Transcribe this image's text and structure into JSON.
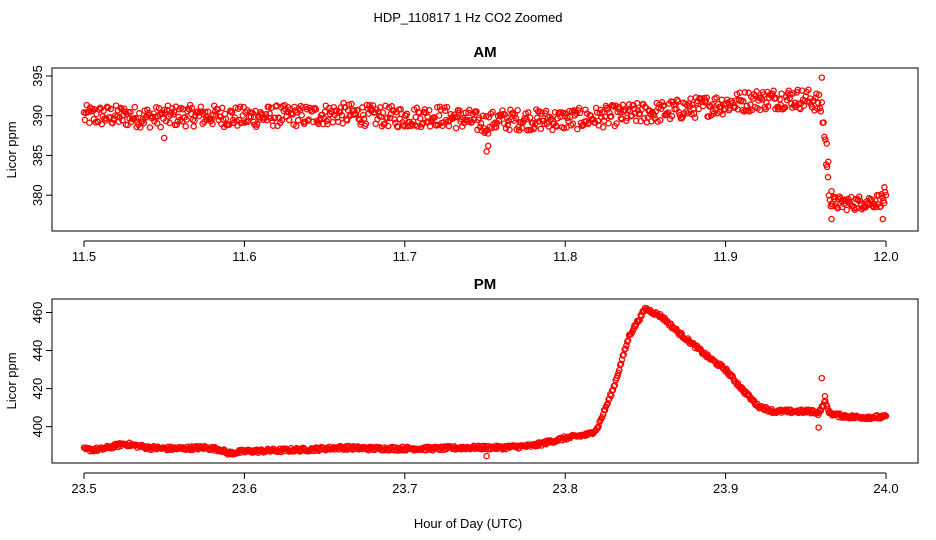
{
  "chart_data": {
    "type": "scatter",
    "title": "HDP_110817  1 Hz CO2 Zoomed",
    "xlabel": "Hour of Day (UTC)",
    "marker_color": "#ff0000",
    "marker": "open-circle",
    "panels": [
      {
        "id": "am",
        "title": "AM",
        "ylabel": "Licor ppm",
        "xlim": [
          11.5,
          12.0
        ],
        "ylim": [
          376,
          395.5
        ],
        "xticks": [
          11.5,
          11.6,
          11.7,
          11.8,
          11.9,
          12.0
        ],
        "xtick_labels": [
          "11.5",
          "11.6",
          "11.7",
          "11.8",
          "11.9",
          "12.0"
        ],
        "yticks": [
          380,
          385,
          390,
          395
        ],
        "ytick_labels": [
          "380",
          "385",
          "390",
          "395"
        ],
        "series": [
          {
            "x": [
              11.5,
              11.52,
              11.54,
              11.56,
              11.58,
              11.6,
              11.62,
              11.64,
              11.66,
              11.68,
              11.7,
              11.72,
              11.74,
              11.75,
              11.76,
              11.78,
              11.8,
              11.82,
              11.84,
              11.86,
              11.88,
              11.9,
              11.92,
              11.94,
              11.955,
              11.96,
              11.962,
              11.964,
              11.966,
              11.97,
              11.98,
              11.99,
              12.0
            ],
            "y": [
              390,
              390,
              389.8,
              390,
              390,
              389.8,
              390,
              390,
              390.3,
              390,
              389.8,
              390,
              389.5,
              389.0,
              389.5,
              389.5,
              389.5,
              389.8,
              390.2,
              390.5,
              391.0,
              391.5,
              392.0,
              392.2,
              392.0,
              391.0,
              387.0,
              381.0,
              379.0,
              379.0,
              379.0,
              379.2,
              379.5
            ],
            "spread": [
              1.5,
              1.5,
              1.5,
              1.5,
              1.5,
              1.5,
              1.5,
              1.5,
              1.5,
              1.5,
              1.5,
              1.5,
              1.5,
              1.5,
              1.5,
              1.5,
              1.5,
              1.5,
              1.5,
              1.5,
              1.5,
              1.5,
              1.5,
              1.5,
              1.5,
              1.5,
              2.0,
              1.2,
              1.0,
              1.0,
              1.0,
              1.0,
              1.0
            ]
          }
        ],
        "outliers": [
          {
            "x": 11.751,
            "y": 385.5
          },
          {
            "x": 11.752,
            "y": 386.2
          },
          {
            "x": 11.55,
            "y": 387.2
          },
          {
            "x": 11.96,
            "y": 394.8
          },
          {
            "x": 11.963,
            "y": 386.5
          },
          {
            "x": 11.964,
            "y": 384.2
          },
          {
            "x": 11.966,
            "y": 380.5
          },
          {
            "x": 11.966,
            "y": 377.0
          },
          {
            "x": 11.999,
            "y": 381.0
          },
          {
            "x": 11.998,
            "y": 377.0
          }
        ]
      },
      {
        "id": "pm",
        "title": "PM",
        "ylabel": "Licor ppm",
        "xlim": [
          23.5,
          24.0
        ],
        "ylim": [
          383,
          465
        ],
        "xticks": [
          23.5,
          23.6,
          23.7,
          23.8,
          23.9,
          24.0
        ],
        "xtick_labels": [
          "23.5",
          "23.6",
          "23.7",
          "23.8",
          "23.9",
          "24.0"
        ],
        "yticks": [
          400,
          420,
          440,
          460
        ],
        "ytick_labels": [
          "400",
          "420",
          "440",
          "460"
        ],
        "series": [
          {
            "x": [
              23.5,
              23.51,
              23.525,
              23.54,
              23.55,
              23.56,
              23.575,
              23.585,
              23.59,
              23.6,
              23.62,
              23.64,
              23.66,
              23.68,
              23.7,
              23.72,
              23.74,
              23.76,
              23.78,
              23.8,
              23.815,
              23.82,
              23.83,
              23.84,
              23.85,
              23.86,
              23.87,
              23.88,
              23.89,
              23.9,
              23.91,
              23.92,
              23.93,
              23.94,
              23.95,
              23.955,
              23.958,
              23.962,
              23.965,
              23.97,
              23.98,
              23.99,
              24.0
            ],
            "y": [
              388,
              388,
              391,
              389,
              388.5,
              388.5,
              389,
              388,
              386,
              387,
              387.5,
              388,
              389,
              388.5,
              388.5,
              388.5,
              389,
              389,
              390,
              394,
              396,
              399,
              420,
              448,
              462,
              458,
              450,
              443,
              436,
              430,
              420,
              411,
              408,
              408,
              408,
              408,
              407,
              413,
              407,
              406,
              405,
              405,
              405
            ],
            "spread": [
              2,
              2,
              2,
              2,
              2,
              2,
              2,
              2,
              2,
              2,
              2,
              2,
              2,
              2,
              2,
              2,
              2,
              2,
              2,
              2,
              2,
              2,
              2,
              2,
              2,
              2,
              2,
              2,
              2,
              2,
              2,
              2,
              2,
              2,
              2,
              2,
              2,
              2,
              2,
              2,
              2,
              2,
              2
            ]
          }
        ],
        "outliers": [
          {
            "x": 23.751,
            "y": 384.5
          },
          {
            "x": 23.96,
            "y": 425.5
          },
          {
            "x": 23.958,
            "y": 399.5
          },
          {
            "x": 23.962,
            "y": 416.0
          }
        ]
      }
    ]
  }
}
